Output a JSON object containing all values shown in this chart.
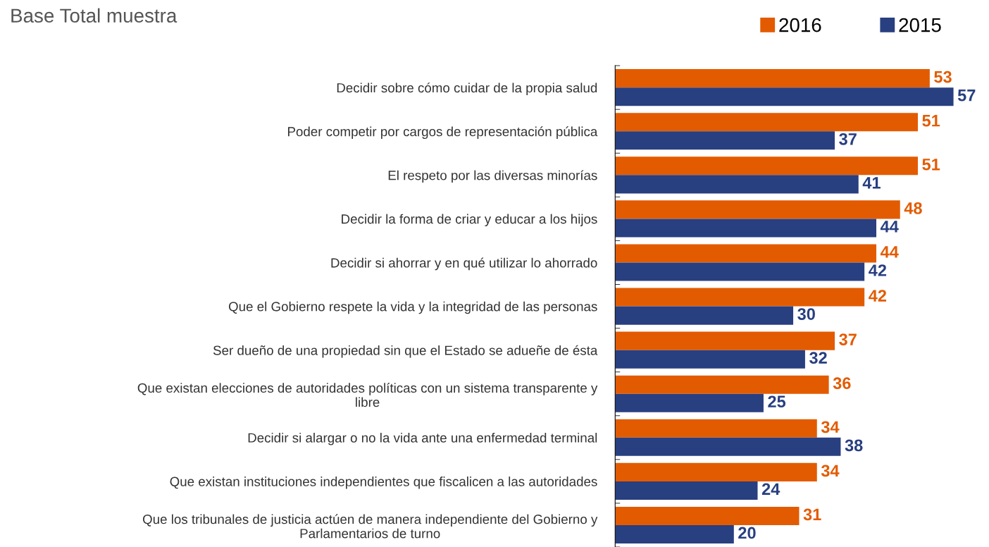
{
  "chart_data": {
    "type": "bar",
    "orientation": "horizontal",
    "title": "Base Total muestra",
    "categories": [
      "Decidir sobre cómo cuidar de la propia salud",
      "Poder competir por cargos de representación pública",
      "El respeto por las diversas minorías",
      "Decidir la forma de criar y educar a los hijos",
      "Decidir si ahorrar y en qué utilizar lo ahorrado",
      "Que el Gobierno respete la vida y la integridad de las personas",
      "Ser dueño de una propiedad sin que el Estado se adueñe de ésta",
      "Que existan elecciones de autoridades políticas con un sistema transparente y\nlibre",
      "Decidir si alargar o no la vida ante una enfermedad terminal",
      "Que existan instituciones independientes que fiscalicen a las autoridades",
      "Que los tribunales de justicia actúen de manera independiente del Gobierno y\nParlamentarios de turno"
    ],
    "series": [
      {
        "name": "2016",
        "color": "#e35b00",
        "values": [
          53,
          51,
          51,
          48,
          44,
          42,
          37,
          36,
          34,
          34,
          31
        ]
      },
      {
        "name": "2015",
        "color": "#283f80",
        "values": [
          57,
          37,
          41,
          44,
          42,
          30,
          32,
          25,
          38,
          24,
          20
        ]
      }
    ],
    "data_labels": true,
    "legend": "top right",
    "grid": false,
    "tick_labels": "y"
  }
}
